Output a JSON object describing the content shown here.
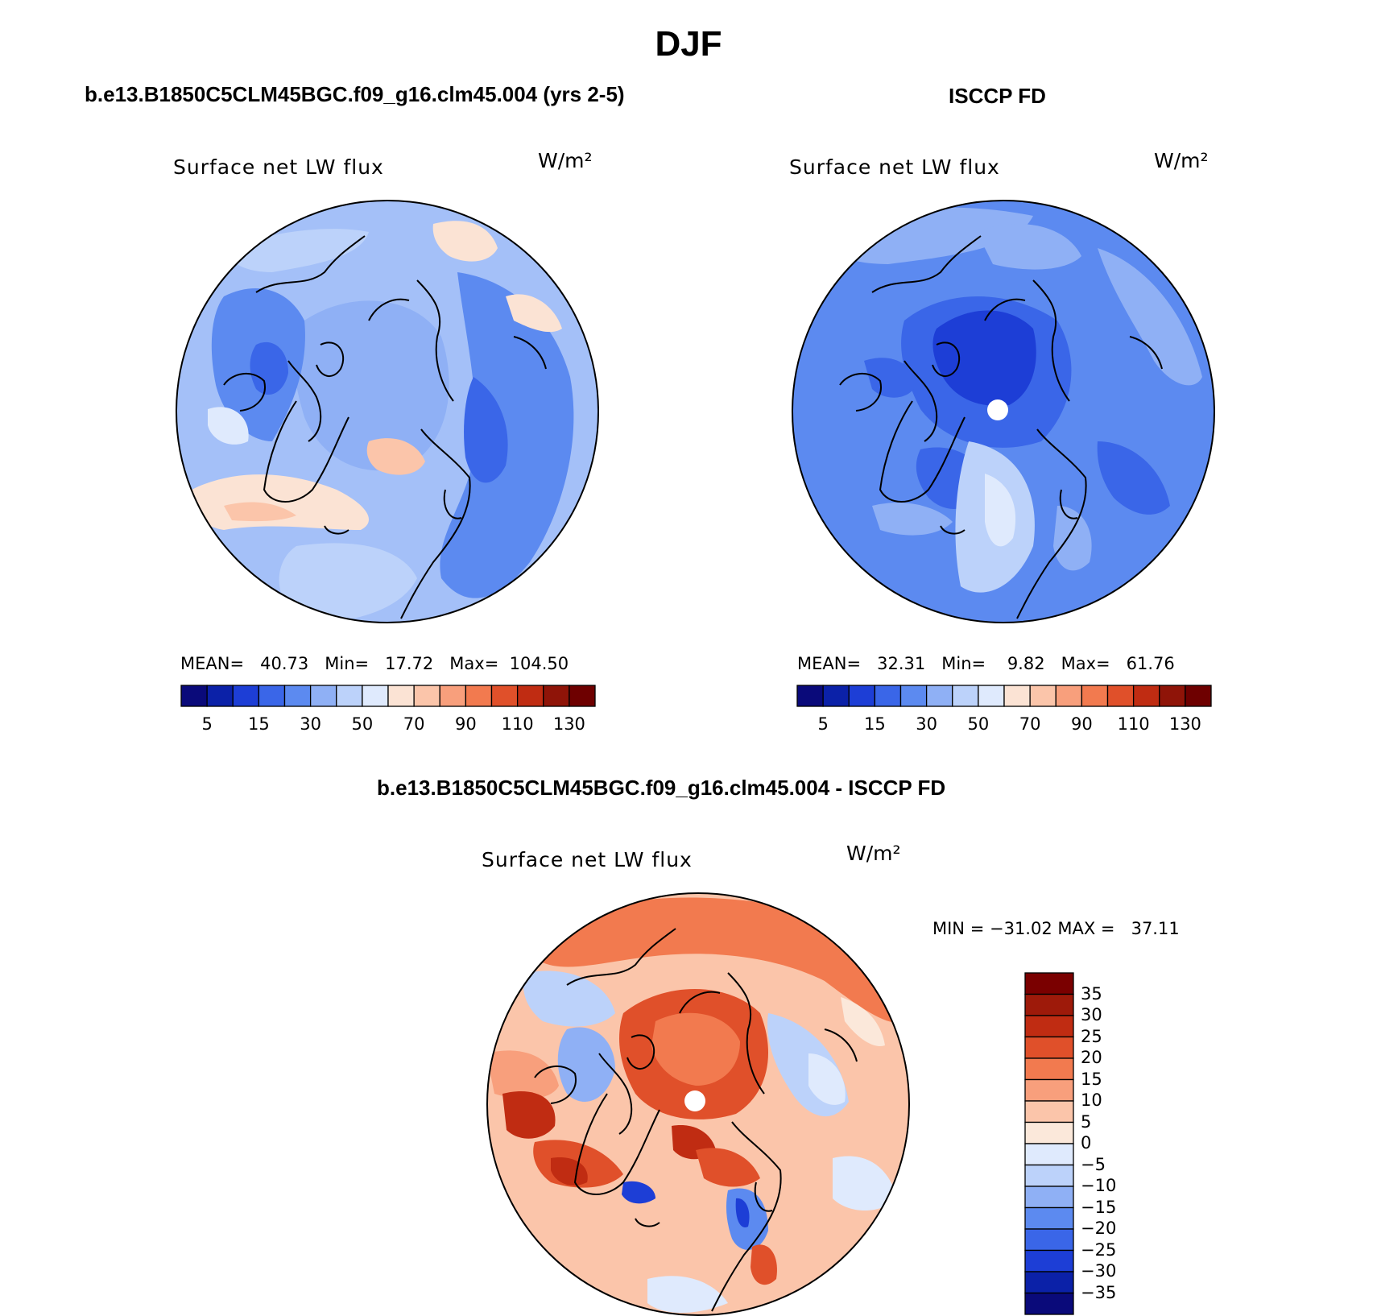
{
  "title": "DJF",
  "panels": [
    {
      "id": "model",
      "title": "b.e13.B1850C5CLM45BGC.f09_g16.clm45.004 (yrs 2-5)",
      "variable": "Surface net LW flux",
      "units": "W/m²",
      "stats": {
        "mean_label": "MEAN=",
        "mean": "40.73",
        "min_label": "Min=",
        "min": "17.72",
        "max_label": "Max=",
        "max": "104.50"
      },
      "colorbar_ticks": [
        "5",
        "15",
        "30",
        "50",
        "70",
        "90",
        "110",
        "130"
      ]
    },
    {
      "id": "obs",
      "title": "ISCCP FD",
      "variable": "Surface net LW flux",
      "units": "W/m²",
      "stats": {
        "mean_label": "MEAN=",
        "mean": "32.31",
        "min_label": "Min=",
        "min": "9.82",
        "max_label": "Max=",
        "max": "61.76"
      },
      "colorbar_ticks": [
        "5",
        "15",
        "30",
        "50",
        "70",
        "90",
        "110",
        "130"
      ]
    },
    {
      "id": "diff",
      "title": "b.e13.B1850C5CLM45BGC.f09_g16.clm45.004 - ISCCP FD",
      "variable": "Surface net LW flux",
      "units": "W/m²",
      "stats": {
        "min_label": "MIN =",
        "min": "−31.02",
        "max_label": "MAX =",
        "max": "37.11"
      },
      "colorbar_ticks": [
        "35",
        "30",
        "25",
        "20",
        "15",
        "10",
        "5",
        "0",
        "−5",
        "−10",
        "−15",
        "−20",
        "−25",
        "−30",
        "−35"
      ]
    }
  ],
  "colors": {
    "abs_scale": [
      "#0a0a7a",
      "#0b21a8",
      "#1d3ed6",
      "#3a66e8",
      "#5c8af0",
      "#8fb0f5",
      "#bcd2fa",
      "#dfeafd",
      "#fbe3d4",
      "#fbc5aa",
      "#f89f7c",
      "#f27a4f",
      "#e0502a",
      "#c02c12",
      "#8f1408",
      "#6e0000"
    ],
    "diff_scale": [
      "#0a0a7a",
      "#0b21a8",
      "#1d3ed6",
      "#3a66e8",
      "#5c8af0",
      "#8fb0f5",
      "#bcd2fa",
      "#dfeafd",
      "#fbe8da",
      "#fbc5aa",
      "#f89f7c",
      "#f27a4f",
      "#e0502a",
      "#c02c12",
      "#9e1a0a",
      "#7a0000"
    ]
  }
}
